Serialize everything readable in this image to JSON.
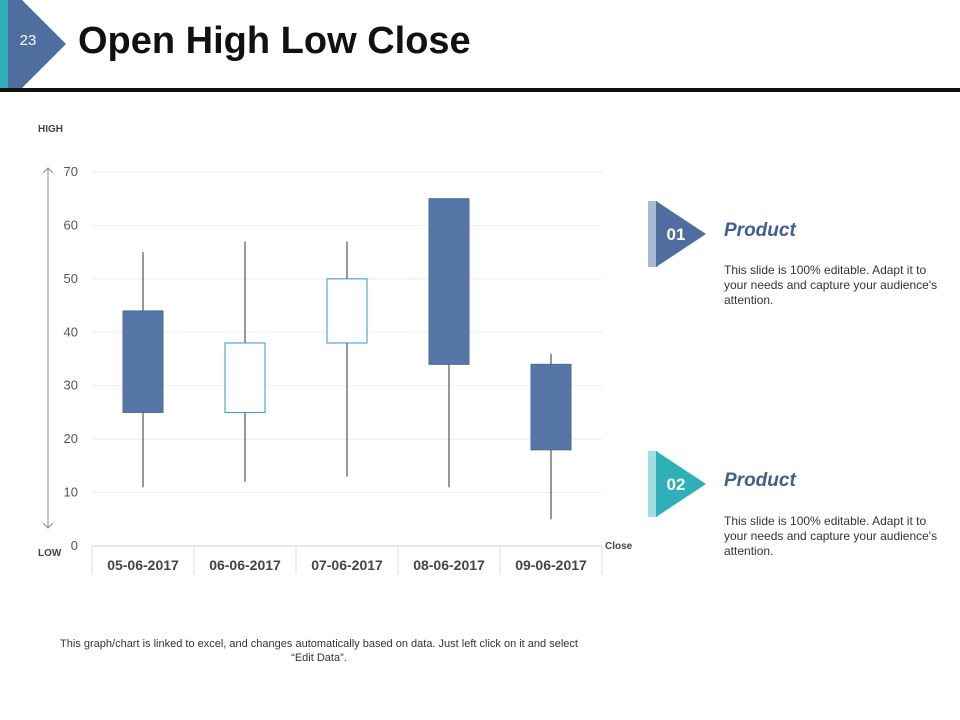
{
  "slide": {
    "number": "23",
    "title": "Open High Low Close"
  },
  "axis_words": {
    "high": "HIGH",
    "low": "LOW",
    "close": "Close"
  },
  "chart_data": {
    "type": "candlestick",
    "title": "",
    "categories": [
      "05-06-2017",
      "06-06-2017",
      "07-06-2017",
      "08-06-2017",
      "09-06-2017"
    ],
    "open": [
      44,
      25,
      38,
      65,
      34
    ],
    "high": [
      55,
      57,
      57,
      65,
      36
    ],
    "low": [
      11,
      12,
      13,
      11,
      5
    ],
    "close": [
      25,
      38,
      50,
      34,
      18
    ],
    "ylim": [
      0,
      70
    ],
    "yticks": [
      0,
      10,
      20,
      30,
      40,
      50,
      60,
      70
    ],
    "grid": true,
    "colors": {
      "down": "#5576a6",
      "up_fill": "#ffffff",
      "up_border": "#2e9bbd",
      "wick": "#333333"
    }
  },
  "note": "This graph/chart is linked to excel,  and changes automatically based on data. Just left click on it and select “Edit Data”.",
  "products": [
    {
      "number": "01",
      "title": "Product",
      "text": "This slide is 100% editable. Adapt it to your needs and capture your audience's attention."
    },
    {
      "number": "02",
      "title": "Product",
      "text": "This slide is 100% editable. Adapt it to your needs and capture your audience's attention."
    }
  ],
  "colors": {
    "navy": "#4d6e9e",
    "teal": "#2fb0b8",
    "teal_dark": "#1f8f98"
  }
}
